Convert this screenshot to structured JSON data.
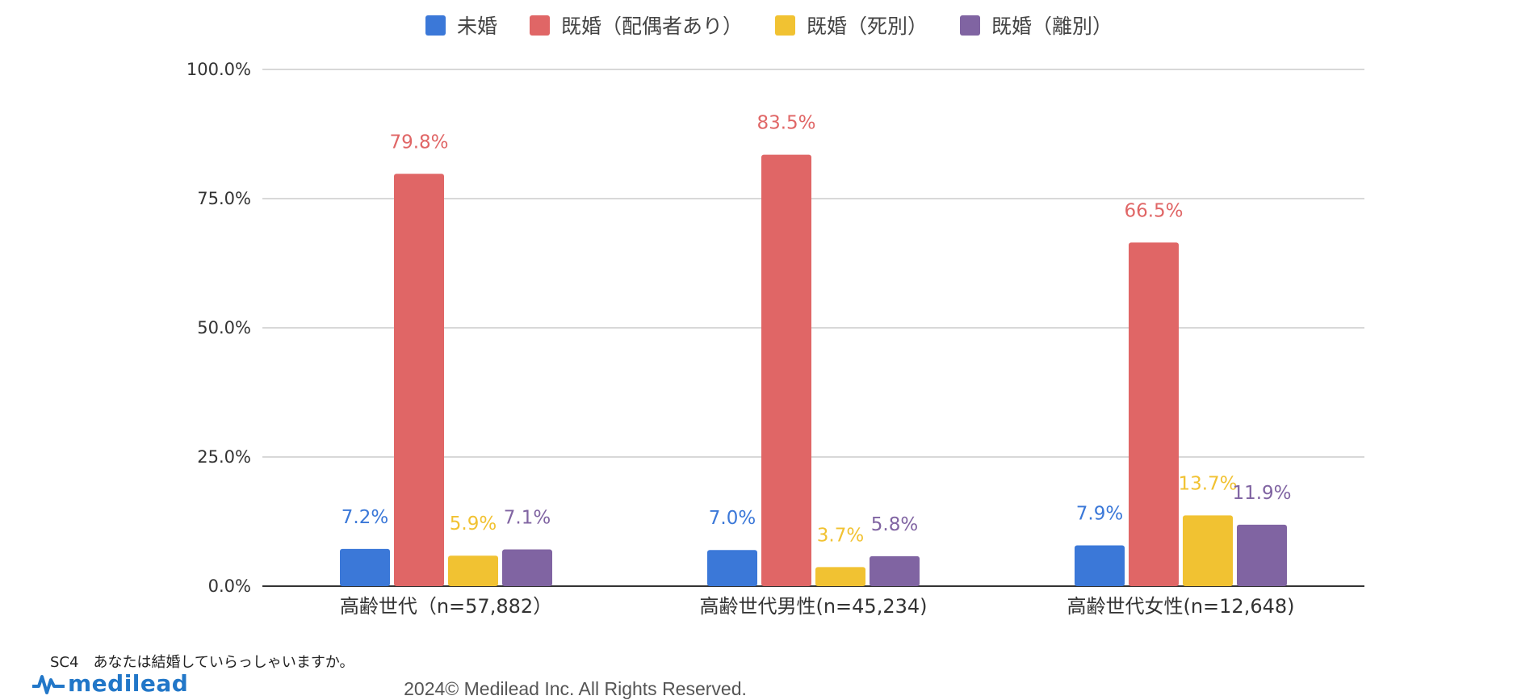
{
  "chart_data": {
    "type": "bar",
    "categories": [
      "高齢世代（n=57,882）",
      "高齢世代男性(n=45,234)",
      "高齢世代女性(n=12,648)"
    ],
    "series": [
      {
        "name": "未婚",
        "color": "#3b78d8",
        "values": [
          7.2,
          7.0,
          7.9
        ]
      },
      {
        "name": "既婚（配偶者あり）",
        "color": "#e06666",
        "values": [
          79.8,
          83.5,
          66.5
        ]
      },
      {
        "name": "既婚（死別）",
        "color": "#f1c232",
        "values": [
          5.9,
          3.7,
          13.7
        ]
      },
      {
        "name": "既婚（離別）",
        "color": "#8064a2",
        "values": [
          7.1,
          5.8,
          11.9
        ]
      }
    ],
    "y_ticks": [
      "0.0%",
      "25.0%",
      "50.0%",
      "75.0%",
      "100.0%"
    ],
    "ylim": [
      0,
      100
    ],
    "value_suffix": "%",
    "grid": true,
    "legend_position": "top-center"
  },
  "footer": {
    "question": "SC4　あなたは結婚していらっしゃいますか。",
    "logo_text": "medilead",
    "copyright": "2024© Medilead Inc. All Rights Reserved."
  }
}
